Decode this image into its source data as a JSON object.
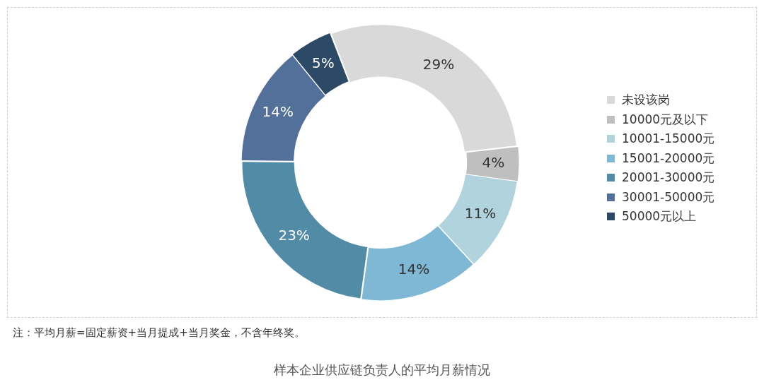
{
  "chart_data": {
    "type": "donut",
    "title": "样本企业供应链负责人的平均月薪情况",
    "categories": [
      "未设该岗",
      "10000元及以下",
      "10001-15000元",
      "15001-20000元",
      "20001-30000元",
      "30001-50000元",
      "50000元以上"
    ],
    "values": [
      29,
      4,
      11,
      14,
      23,
      14,
      5
    ],
    "value_labels": [
      "29%",
      "4%",
      "11%",
      "14%",
      "23%",
      "14%",
      "5%"
    ],
    "colors": [
      "#d9d9d9",
      "#bfbfbf",
      "#b0d3de",
      "#7fb8d4",
      "#528ba6",
      "#52709a",
      "#2c4a66"
    ],
    "legend": "right",
    "annotations": [
      "注：平均月薪=固定薪资+当月提成+当月奖金，不含年终奖。"
    ]
  }
}
